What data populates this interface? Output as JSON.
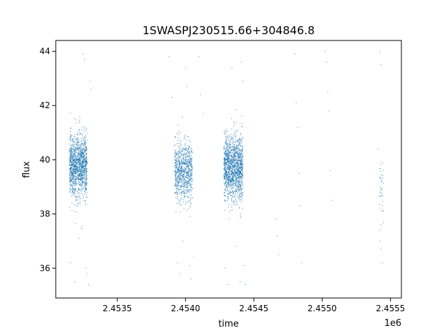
{
  "chart_data": {
    "type": "scatter",
    "title": "1SWASPJ230515.66+304846.8",
    "xlabel": "time",
    "ylabel": "flux",
    "x_offset_label": "1e6",
    "xlim": [
      2.45305,
      2.45558
    ],
    "ylim": [
      34.9,
      44.4
    ],
    "x_ticks": [
      2.4535,
      2.454,
      2.4545,
      2.455,
      2.4555
    ],
    "x_tick_labels": [
      "2.4535",
      "2.4540",
      "2.4545",
      "2.4550",
      "2.4555"
    ],
    "y_ticks": [
      36,
      38,
      40,
      42,
      44
    ],
    "y_tick_labels": [
      "36",
      "38",
      "40",
      "42",
      "44"
    ],
    "grid": false,
    "marker_color": "#1f77b4",
    "series": [
      {
        "clusters": [
          {
            "x_start": 2.45315,
            "x_end": 2.45328,
            "y_center": 39.8,
            "y_spread": 0.9,
            "points": 1400
          },
          {
            "x_start": 2.45392,
            "x_end": 2.45405,
            "y_center": 39.6,
            "y_spread": 0.85,
            "points": 900
          },
          {
            "x_start": 2.45428,
            "x_end": 2.45442,
            "y_center": 39.7,
            "y_spread": 0.95,
            "points": 1500
          },
          {
            "x_start": 2.45542,
            "x_end": 2.45545,
            "y_center": 38.8,
            "y_spread": 0.9,
            "points": 40
          }
        ],
        "points": [
          [
            2.45316,
            36.2
          ],
          [
            2.45319,
            35.5
          ],
          [
            2.45322,
            37.1
          ],
          [
            2.45325,
            43.9
          ],
          [
            2.45326,
            43.7
          ],
          [
            2.45327,
            36.0
          ],
          [
            2.45328,
            35.8
          ],
          [
            2.45329,
            35.4
          ],
          [
            2.4533,
            42.9
          ],
          [
            2.45331,
            42.6
          ],
          [
            2.45388,
            43.8
          ],
          [
            2.4539,
            42.3
          ],
          [
            2.45394,
            36.2
          ],
          [
            2.45396,
            35.8
          ],
          [
            2.45398,
            37.0
          ],
          [
            2.454,
            43.4
          ],
          [
            2.45401,
            42.7
          ],
          [
            2.45403,
            36.1
          ],
          [
            2.45404,
            35.6
          ],
          [
            2.45406,
            36.4
          ],
          [
            2.4541,
            43.8
          ],
          [
            2.45411,
            42.4
          ],
          [
            2.45413,
            41.7
          ],
          [
            2.45429,
            36.0
          ],
          [
            2.45431,
            35.4
          ],
          [
            2.45434,
            43.4
          ],
          [
            2.45437,
            36.8
          ],
          [
            2.4544,
            35.5
          ],
          [
            2.45441,
            43.6
          ],
          [
            2.45442,
            42.9
          ],
          [
            2.45443,
            36.1
          ],
          [
            2.45444,
            35.4
          ],
          [
            2.45466,
            37.8
          ],
          [
            2.45467,
            37.2
          ],
          [
            2.45468,
            36.5
          ],
          [
            2.4548,
            43.9
          ],
          [
            2.45481,
            42.1
          ],
          [
            2.45482,
            41.2
          ],
          [
            2.45483,
            39.5
          ],
          [
            2.45484,
            38.3
          ],
          [
            2.45485,
            36.2
          ],
          [
            2.45502,
            44.0
          ],
          [
            2.45503,
            43.6
          ],
          [
            2.45504,
            42.5
          ],
          [
            2.45505,
            41.8
          ],
          [
            2.45506,
            39.6
          ],
          [
            2.45507,
            38.5
          ],
          [
            2.45542,
            44.0
          ],
          [
            2.45543,
            43.5
          ],
          [
            2.45541,
            40.4
          ],
          [
            2.45542,
            37.0
          ],
          [
            2.45543,
            36.7
          ],
          [
            2.45544,
            36.2
          ]
        ]
      }
    ]
  }
}
